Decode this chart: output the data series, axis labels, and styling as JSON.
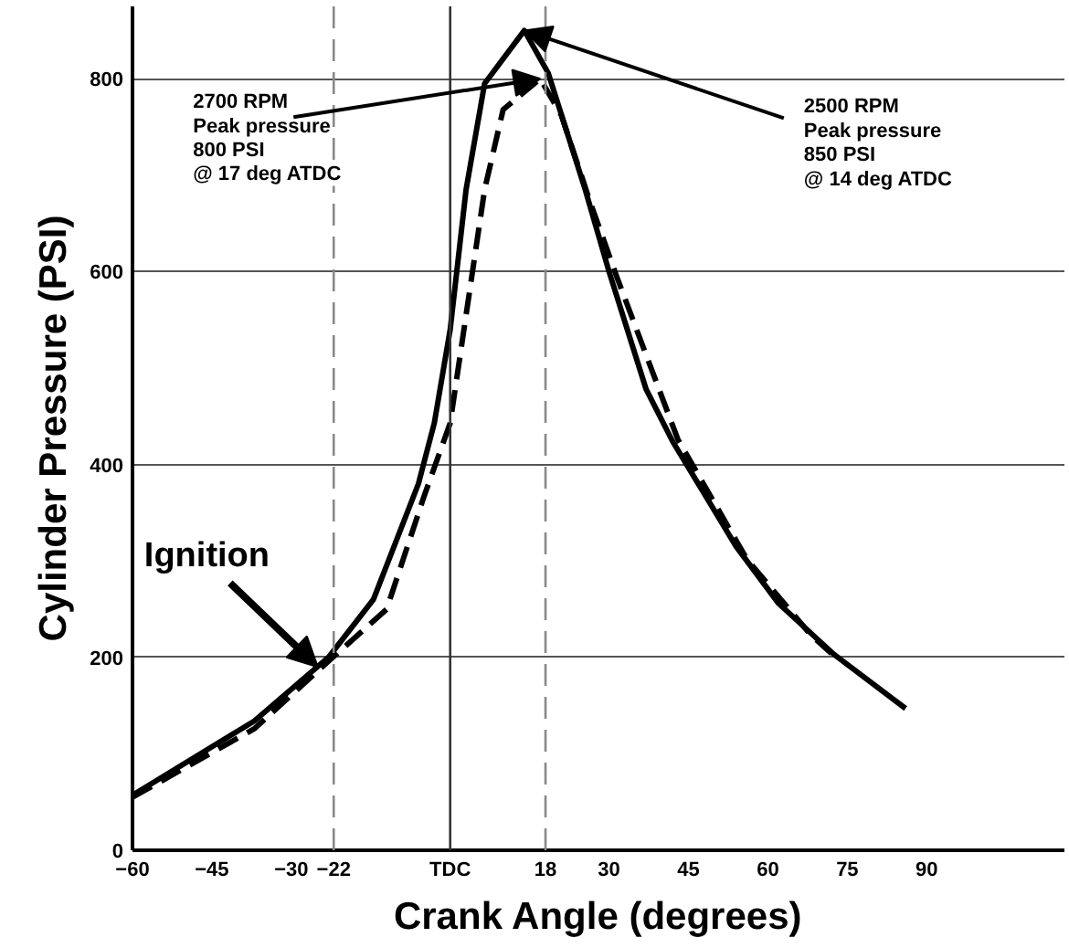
{
  "chart_data": {
    "type": "line",
    "xlabel": "Crank Angle (degrees)",
    "ylabel": "Cylinder Pressure (PSI)",
    "xlim": [
      -60,
      116
    ],
    "ylim": [
      0,
      875
    ],
    "xticks": [
      -60,
      -45,
      -30,
      -22,
      {
        "value": 0,
        "label": "TDC"
      },
      18,
      30,
      45,
      60,
      75,
      90
    ],
    "yticks": [
      0,
      200,
      400,
      600,
      800
    ],
    "grid": "y",
    "series": [
      {
        "color": "#000000",
        "line_style": "solid",
        "x": [
          -60,
          -37,
          -23,
          -14.5,
          -6,
          -3,
          0,
          3,
          6.5,
          14,
          18.5,
          25.5,
          30,
          37,
          42,
          54,
          62,
          72.5,
          86
        ],
        "values": [
          57,
          134,
          200,
          260,
          380,
          443,
          540,
          685,
          795,
          850,
          806,
          685,
          600,
          478,
          424,
          315,
          256,
          203,
          147
        ]
      },
      {
        "color": "#000000",
        "line_style": "dashed",
        "x": [
          -60,
          -37,
          -23,
          -12,
          -5,
          0,
          3,
          6.5,
          10,
          17,
          21,
          26.5,
          31.5,
          43,
          56,
          68,
          72
        ],
        "values": [
          55,
          126,
          196,
          250,
          366,
          443,
          555,
          685,
          768,
          800,
          762,
          671,
          594,
          426,
          302,
          224,
          204
        ]
      }
    ],
    "ref_lines": [
      {
        "axis": "x",
        "value": -22,
        "color": "#888888",
        "line_style": "dashed"
      },
      {
        "axis": "x",
        "value": 0,
        "color": "#333333",
        "line_style": "solid"
      },
      {
        "axis": "x",
        "value": 18,
        "color": "#888888",
        "line_style": "dashed"
      }
    ],
    "annotations": [
      {
        "text": "2700 RPM\nPeak pressure\n800 PSI\n@ 17 deg ATDC",
        "x": 17,
        "y": 800
      },
      {
        "text": "2500 RPM\nPeak pressure\n850 PSI\n@ 14 deg ATDC",
        "x": 14,
        "y": 850
      },
      {
        "text": "Ignition",
        "x": -25,
        "y": 190
      }
    ]
  }
}
